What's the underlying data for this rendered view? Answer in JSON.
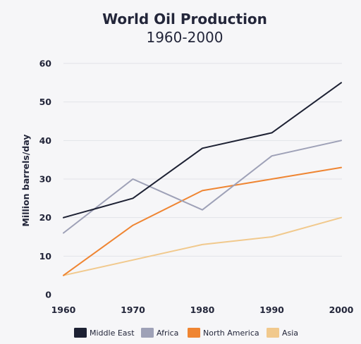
{
  "chart_data": {
    "type": "line",
    "title": "World Oil Production",
    "subtitle": "1960-2000",
    "xlabel": "",
    "ylabel": "Million barrels/day",
    "categories": [
      "1960",
      "1970",
      "1980",
      "1990",
      "2000"
    ],
    "x": [
      1960,
      1970,
      1980,
      1990,
      2000
    ],
    "ylim": [
      0,
      60
    ],
    "yticks": [
      "0",
      "10",
      "20",
      "30",
      "40",
      "50",
      "60"
    ],
    "grid": true,
    "legend_position": "bottom",
    "series": [
      {
        "name": "Middle East",
        "color": "#1d2133",
        "values": [
          20,
          25,
          38,
          42,
          55
        ]
      },
      {
        "name": "Africa",
        "color": "#9ea1b7",
        "values": [
          16,
          30,
          22,
          36,
          40
        ]
      },
      {
        "name": "North America",
        "color": "#ef8532",
        "values": [
          5,
          18,
          27,
          30,
          33
        ]
      },
      {
        "name": "Asia",
        "color": "#f1c98d",
        "values": [
          5,
          9,
          13,
          15,
          20
        ]
      }
    ]
  }
}
